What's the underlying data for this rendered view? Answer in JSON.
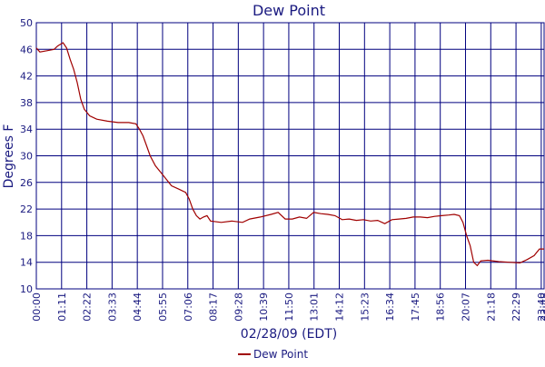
{
  "chart_data": {
    "type": "line",
    "title": "Dew Point",
    "y_label": "Degrees F",
    "x_label": "02/28/09 (EDT)",
    "x": [
      0,
      10,
      30,
      50,
      60,
      75,
      85,
      95,
      105,
      115,
      125,
      135,
      150,
      170,
      200,
      230,
      260,
      280,
      290,
      300,
      310,
      320,
      335,
      350,
      365,
      380,
      400,
      420,
      430,
      440,
      450,
      460,
      470,
      480,
      490,
      520,
      550,
      580,
      600,
      630,
      660,
      680,
      700,
      720,
      740,
      760,
      780,
      800,
      820,
      840,
      860,
      880,
      900,
      920,
      940,
      960,
      980,
      1000,
      1020,
      1040,
      1060,
      1080,
      1100,
      1120,
      1140,
      1160,
      1175,
      1190,
      1200,
      1210,
      1220,
      1230,
      1240,
      1250,
      1270,
      1300,
      1330,
      1360,
      1380,
      1400,
      1415,
      1428
    ],
    "series": [
      {
        "name": "Dew Point",
        "color": "#a00000",
        "values": [
          46.2,
          45.6,
          45.8,
          46.0,
          46.5,
          47.0,
          46.2,
          44.5,
          43,
          41,
          38.5,
          37,
          36,
          35.5,
          35.2,
          35,
          35,
          34.8,
          34,
          33,
          31.5,
          30,
          28.5,
          27.5,
          26.5,
          25.5,
          25,
          24.5,
          23.5,
          22,
          21,
          20.5,
          20.8,
          21,
          20.2,
          20,
          20.2,
          20,
          20.5,
          20.8,
          21.2,
          21.5,
          20.5,
          20.5,
          20.8,
          20.6,
          21.5,
          21.3,
          21.2,
          21,
          20.4,
          20.5,
          20.3,
          20.4,
          20.2,
          20.3,
          19.8,
          20.4,
          20.5,
          20.6,
          20.8,
          20.8,
          20.7,
          20.9,
          21,
          21.1,
          21.2,
          21,
          20,
          18,
          16.5,
          14,
          13.5,
          14.2,
          14.3,
          14.1,
          14,
          13.9,
          14.4,
          15,
          16,
          16
        ]
      }
    ],
    "xlim": [
      0,
      1428
    ],
    "xticks": [
      {
        "value": 0,
        "label": "00:00"
      },
      {
        "value": 71,
        "label": "01:11"
      },
      {
        "value": 142,
        "label": "02:22"
      },
      {
        "value": 213,
        "label": "03:33"
      },
      {
        "value": 284,
        "label": "04:44"
      },
      {
        "value": 355,
        "label": "05:55"
      },
      {
        "value": 426,
        "label": "07:06"
      },
      {
        "value": 497,
        "label": "08:17"
      },
      {
        "value": 568,
        "label": "09:28"
      },
      {
        "value": 639,
        "label": "10:39"
      },
      {
        "value": 710,
        "label": "11:50"
      },
      {
        "value": 781,
        "label": "13:01"
      },
      {
        "value": 852,
        "label": "14:12"
      },
      {
        "value": 923,
        "label": "15:23"
      },
      {
        "value": 994,
        "label": "16:34"
      },
      {
        "value": 1065,
        "label": "17:45"
      },
      {
        "value": 1136,
        "label": "18:56"
      },
      {
        "value": 1207,
        "label": "20:07"
      },
      {
        "value": 1278,
        "label": "21:18"
      },
      {
        "value": 1349,
        "label": "22:29"
      },
      {
        "value": 1420,
        "label": "23:40"
      },
      {
        "value": 1428,
        "label": "23:48"
      }
    ],
    "ylim": [
      10,
      50
    ],
    "yticks": [
      10,
      14,
      18,
      22,
      26,
      30,
      34,
      38,
      42,
      46,
      50
    ],
    "grid": true
  }
}
